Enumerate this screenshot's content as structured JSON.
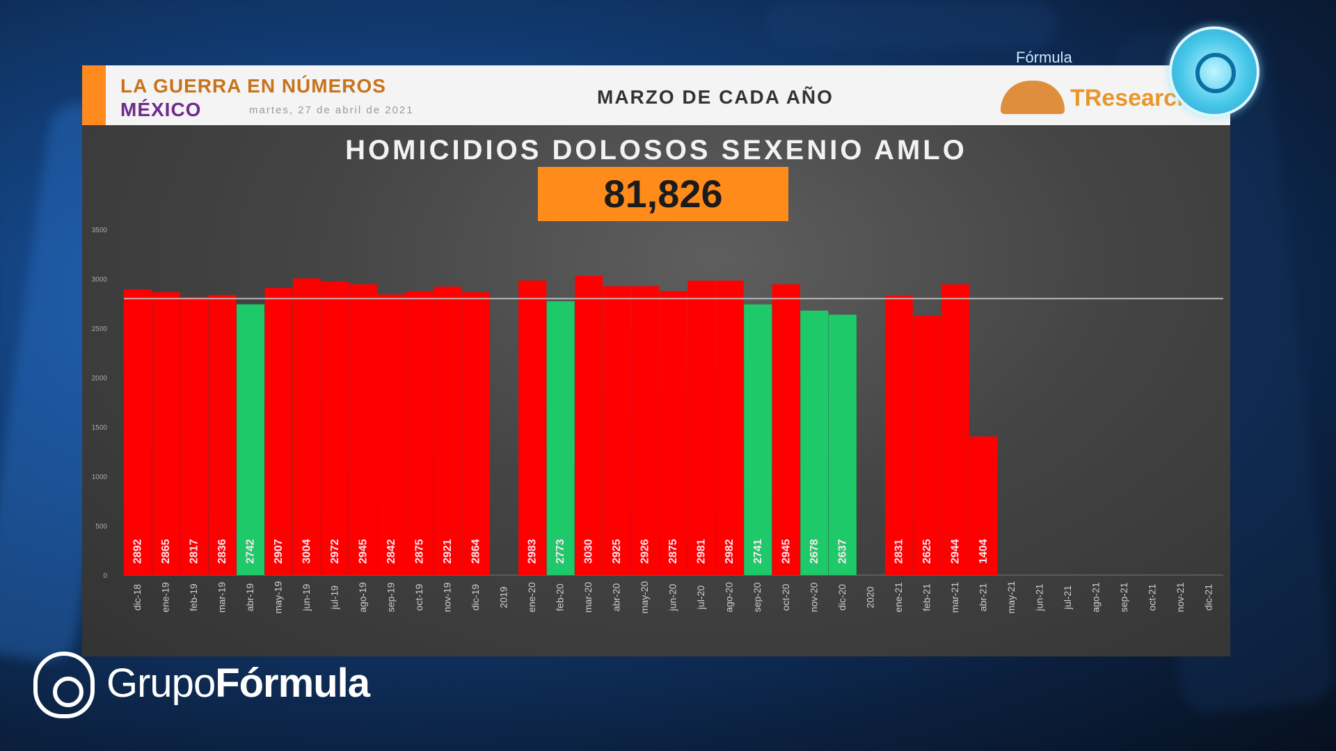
{
  "header": {
    "title": "LA GUERRA EN NÚMEROS",
    "country": "MÉXICO",
    "date": "martes, 27 de abril de 2021",
    "subtitle": "MARZO DE CADA AÑO",
    "logo_text": "TResearch",
    "network_small": "Fórmula"
  },
  "brand": {
    "name_light": "Grupo",
    "name_bold": "Fórmula"
  },
  "colors": {
    "increase": "#ff0000",
    "decrease": "#1ec96a",
    "total_box": "#ff8c1a",
    "reference_line": "#bbbbbb"
  },
  "chart_data": {
    "type": "bar",
    "title": "HOMICIDIOS DOLOSOS SEXENIO AMLO",
    "total": "81,826",
    "y_ticks": [
      "0",
      "500",
      "1000",
      "1500",
      "2000",
      "2500",
      "3000",
      "3500"
    ],
    "ylim": [
      0,
      3500
    ],
    "reference_value": 2800,
    "categories": [
      "dic-18",
      "ene-19",
      "feb-19",
      "mar-19",
      "abr-19",
      "may-19",
      "jun-19",
      "jul-19",
      "ago-19",
      "sep-19",
      "oct-19",
      "nov-19",
      "dic-19",
      "2019",
      "ene-20",
      "feb-20",
      "mar-20",
      "abr-20",
      "may-20",
      "jun-20",
      "jul-20",
      "ago-20",
      "sep-20",
      "oct-20",
      "nov-20",
      "dic-20",
      "2020",
      "ene-21",
      "feb-21",
      "mar-21",
      "abr-21",
      "may-21",
      "jun-21",
      "jul-21",
      "ago-21",
      "sep-21",
      "oct-21",
      "nov-21",
      "dic-21"
    ],
    "values": [
      2892,
      2865,
      2817,
      2836,
      2742,
      2907,
      3004,
      2972,
      2945,
      2842,
      2875,
      2921,
      2864,
      null,
      2983,
      2773,
      3030,
      2925,
      2926,
      2875,
      2981,
      2982,
      2741,
      2945,
      2678,
      2637,
      null,
      2831,
      2625,
      2944,
      1404,
      null,
      null,
      null,
      null,
      null,
      null,
      null,
      null
    ],
    "value_labels": [
      "2892",
      "2865",
      "2817",
      "2836",
      "2742",
      "2907",
      "3004",
      "2972",
      "2945",
      "2842",
      "2875",
      "2921",
      "2864",
      "",
      "2983",
      "2773",
      "3030",
      "2925",
      "2926",
      "2875",
      "2981",
      "2982",
      "2741",
      "2945",
      "2678",
      "2637",
      "",
      "2831",
      "2625",
      "2944",
      "1404",
      "",
      "",
      "",
      "",
      "",
      "",
      "",
      ""
    ],
    "colors": [
      "r",
      "r",
      "r",
      "r",
      "g",
      "r",
      "r",
      "r",
      "r",
      "r",
      "r",
      "r",
      "r",
      "",
      "r",
      "g",
      "r",
      "r",
      "r",
      "r",
      "r",
      "r",
      "g",
      "r",
      "g",
      "g",
      "",
      "r",
      "r",
      "r",
      "r",
      "",
      "",
      "",
      "",
      "",
      "",
      "",
      ""
    ]
  }
}
